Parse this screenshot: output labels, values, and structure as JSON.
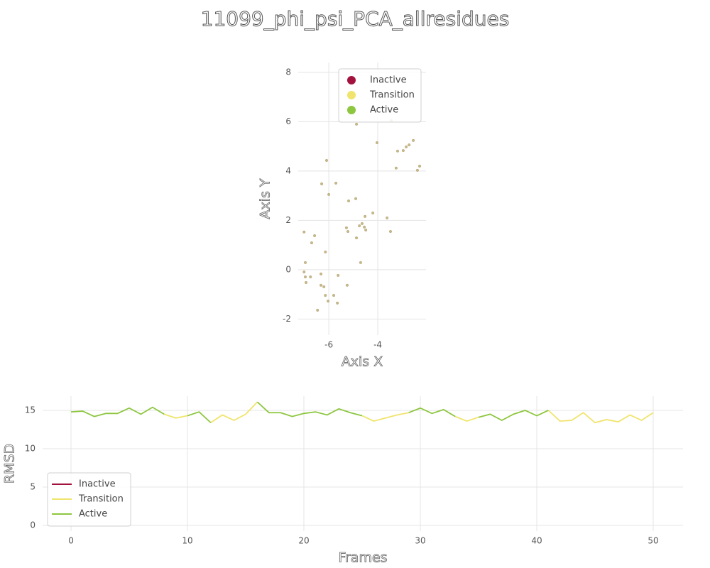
{
  "title": "11099_phi_psi_PCA_allresidues",
  "chart_data": [
    {
      "type": "scatter",
      "xlabel": "Axis X",
      "ylabel": "Axis Y",
      "color": "#c9b98a",
      "x": [
        -7.01,
        -7.01,
        -6.58,
        -6.7,
        -6.96,
        -6.96,
        -6.93,
        -6.75,
        -6.32,
        -6.32,
        -6.2,
        -6.14,
        -6.03,
        -6.46,
        -5.8,
        -5.65,
        -5.62,
        -5.25,
        -6.14,
        -6.29,
        -6.09,
        -6.0,
        -5.71,
        -5.19,
        -4.9,
        -5.28,
        -5.22,
        -4.87,
        -4.75,
        -4.64,
        -4.55,
        -4.49,
        -4.52,
        -4.2,
        -4.7,
        -4.87,
        -4.03,
        -3.45,
        -3.62,
        -3.48,
        -3.25,
        -3.19,
        -2.96,
        -2.84,
        -2.72,
        -2.55,
        -2.38,
        -2.29
      ],
      "y": [
        -0.09,
        1.53,
        1.38,
        1.09,
        0.29,
        -0.29,
        -0.52,
        -0.29,
        -0.17,
        -0.63,
        -0.69,
        -1.04,
        -1.27,
        -1.64,
        -1.04,
        -1.35,
        -0.23,
        -0.63,
        0.72,
        3.48,
        4.43,
        3.05,
        3.51,
        2.79,
        2.88,
        1.7,
        1.55,
        1.29,
        1.78,
        1.87,
        1.73,
        1.61,
        2.16,
        2.3,
        0.29,
        5.9,
        5.15,
        6.04,
        2.1,
        1.55,
        4.12,
        4.81,
        4.83,
        4.98,
        5.06,
        5.24,
        4.03,
        4.2
      ],
      "xlim": [
        -7.25,
        -2.03
      ],
      "ylim": [
        -2.65,
        8.4
      ],
      "xticks": [
        -6,
        -4
      ],
      "yticks": [
        -2,
        0,
        2,
        4,
        6,
        8
      ],
      "grid": true,
      "legend_loc": "upper right",
      "legend_entries": [
        {
          "name": "Inactive",
          "color": "#a3123f"
        },
        {
          "name": "Transition",
          "color": "#f0e46c"
        },
        {
          "name": "Active",
          "color": "#8dc63f"
        }
      ]
    },
    {
      "type": "line",
      "xlabel": "Frames",
      "ylabel": "RMSD",
      "x": [
        0,
        1,
        2,
        3,
        4,
        5,
        6,
        7,
        8,
        9,
        10,
        11,
        12,
        13,
        14,
        15,
        16,
        17,
        18,
        19,
        20,
        21,
        22,
        23,
        24,
        25,
        26,
        27,
        28,
        29,
        30,
        31,
        32,
        33,
        34,
        35,
        36,
        37,
        38,
        39,
        40,
        41,
        42,
        43,
        44,
        45,
        46,
        47,
        48,
        49,
        50
      ],
      "series": [
        {
          "name": "Inactive",
          "color": "#a3123f",
          "values": [
            null,
            null,
            null,
            null,
            null,
            null,
            null,
            null,
            null,
            null,
            null,
            null,
            null,
            null,
            null,
            null,
            null,
            null,
            null,
            null,
            null,
            null,
            null,
            null,
            null,
            null,
            null,
            null,
            null,
            null,
            null,
            null,
            null,
            null,
            null,
            null,
            null,
            null,
            null,
            null,
            null,
            null,
            null,
            null,
            null,
            null,
            null,
            null,
            null,
            null,
            null
          ]
        },
        {
          "name": "Transition",
          "color": "#f0e46c",
          "values": [
            null,
            null,
            null,
            null,
            null,
            null,
            null,
            null,
            14.5,
            14.0,
            14.3,
            null,
            13.4,
            14.4,
            13.7,
            14.5,
            16.1,
            null,
            null,
            null,
            null,
            null,
            null,
            null,
            null,
            14.3,
            13.6,
            14.0,
            14.4,
            14.7,
            null,
            null,
            null,
            14.2,
            13.6,
            14.1,
            null,
            null,
            null,
            null,
            null,
            15.0,
            13.6,
            13.7,
            14.7,
            13.4,
            13.8,
            13.5,
            14.4,
            13.7,
            14.7
          ]
        },
        {
          "name": "Active",
          "color": "#8dc63f",
          "values": [
            14.8,
            14.9,
            14.2,
            14.6,
            14.6,
            15.3,
            14.5,
            15.4,
            14.5,
            null,
            14.3,
            14.8,
            13.4,
            null,
            null,
            null,
            16.1,
            14.7,
            14.7,
            14.2,
            14.6,
            14.8,
            14.4,
            15.2,
            14.7,
            14.3,
            null,
            null,
            null,
            14.7,
            15.3,
            14.6,
            15.1,
            14.2,
            null,
            14.1,
            14.5,
            13.7,
            14.5,
            15.0,
            14.3,
            15.0,
            null,
            null,
            null,
            null,
            null,
            null,
            null,
            null,
            null
          ]
        }
      ],
      "xlim": [
        -2.44,
        52.56
      ],
      "ylim": [
        -0.74,
        16.85
      ],
      "xticks": [
        0,
        10,
        20,
        30,
        40,
        50
      ],
      "yticks": [
        0,
        5,
        10,
        15
      ],
      "grid": true,
      "legend_loc": "lower left"
    }
  ]
}
